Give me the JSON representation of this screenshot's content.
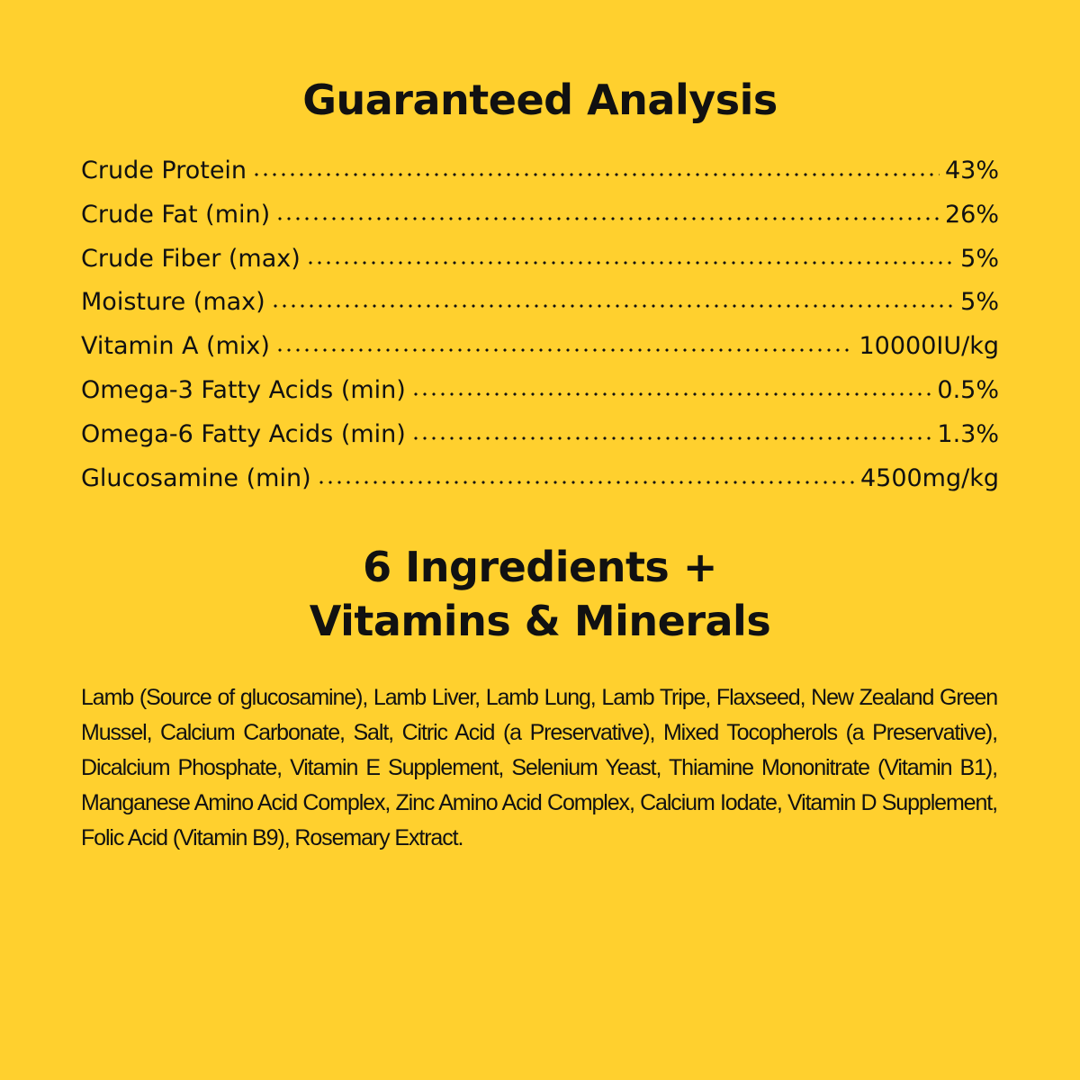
{
  "background_color": "#FFD02E",
  "guaranteed_analysis": {
    "title": "Guaranteed Analysis",
    "rows": [
      {
        "name": "Crude Protein",
        "value": "43%"
      },
      {
        "name": "Crude Fat (min)",
        "value": "26%"
      },
      {
        "name": "Crude Fiber (max)",
        "value": "5%"
      },
      {
        "name": "Moisture (max)",
        "value": "5%"
      },
      {
        "name": "Vitamin A (mix)",
        "value": "10000IU/kg"
      },
      {
        "name": "Omega-3 Fatty Acids (min)",
        "value": "0.5%"
      },
      {
        "name": "Omega-6 Fatty Acids (min)",
        "value": "1.3%"
      },
      {
        "name": "Glucosamine (min)",
        "value": "4500mg/kg"
      }
    ]
  },
  "ingredients": {
    "title_line1": "6 Ingredients +",
    "title_line2": "Vitamins & Minerals",
    "text": "Lamb (Source of glucosamine), Lamb Liver, Lamb Lung, Lamb Tripe, Flaxseed, New Zealand Green Mussel, Calcium Carbonate, Salt, Citric Acid (a Preservative), Mixed Tocopherols (a Preservative), Dicalcium Phosphate, Vitamin E Supplement, Selenium Yeast, Thiamine Mononitrate (Vitamin B1), Manganese Amino Acid Complex, Zinc Amino Acid Complex, Calcium Iodate, Vitamin D Supplement, Folic Acid (Vitamin B9), Rosemary Extract."
  }
}
